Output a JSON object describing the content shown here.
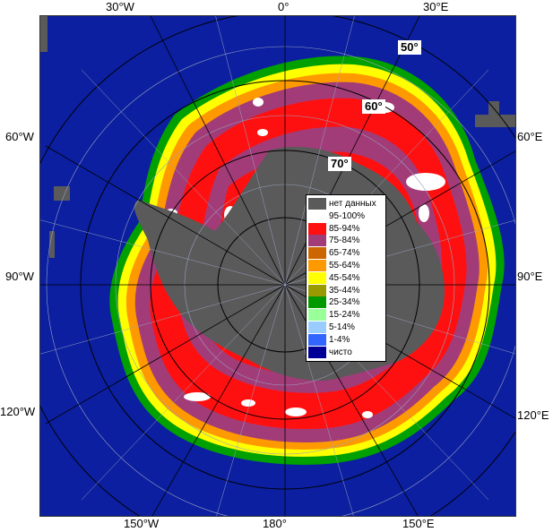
{
  "map": {
    "lon_labels": {
      "top": [
        "30°W",
        "0°",
        "30°E"
      ],
      "left": [
        "60°W",
        "90°W",
        "120°W"
      ],
      "right": [
        "60°E",
        "90°E",
        "120°E"
      ],
      "bottom": [
        "150°W",
        "180°",
        "150°E"
      ]
    },
    "lat_labels": [
      "50°",
      "60°",
      "70°"
    ]
  },
  "legend": {
    "items": [
      {
        "label": "нет данных",
        "color": "#5a5a5a"
      },
      {
        "label": "95-100%",
        "color": "#ffffff"
      },
      {
        "label": "85-94%",
        "color": "#ff1010"
      },
      {
        "label": "75-84%",
        "color": "#a23c78"
      },
      {
        "label": "65-74%",
        "color": "#cc6600"
      },
      {
        "label": "55-64%",
        "color": "#ff9900"
      },
      {
        "label": "45-54%",
        "color": "#ffff00"
      },
      {
        "label": "35-44%",
        "color": "#999900"
      },
      {
        "label": "25-34%",
        "color": "#009900"
      },
      {
        "label": "15-24%",
        "color": "#99ff99"
      },
      {
        "label": "5-14%",
        "color": "#99ccff"
      },
      {
        "label": "1-4%",
        "color": "#3366ff"
      },
      {
        "label": "чисто",
        "color": "#000099"
      }
    ]
  },
  "colors": {
    "ocean": "#0b1fa0",
    "no_data": "#5a5a5a",
    "grid": "#9aa0c0"
  }
}
